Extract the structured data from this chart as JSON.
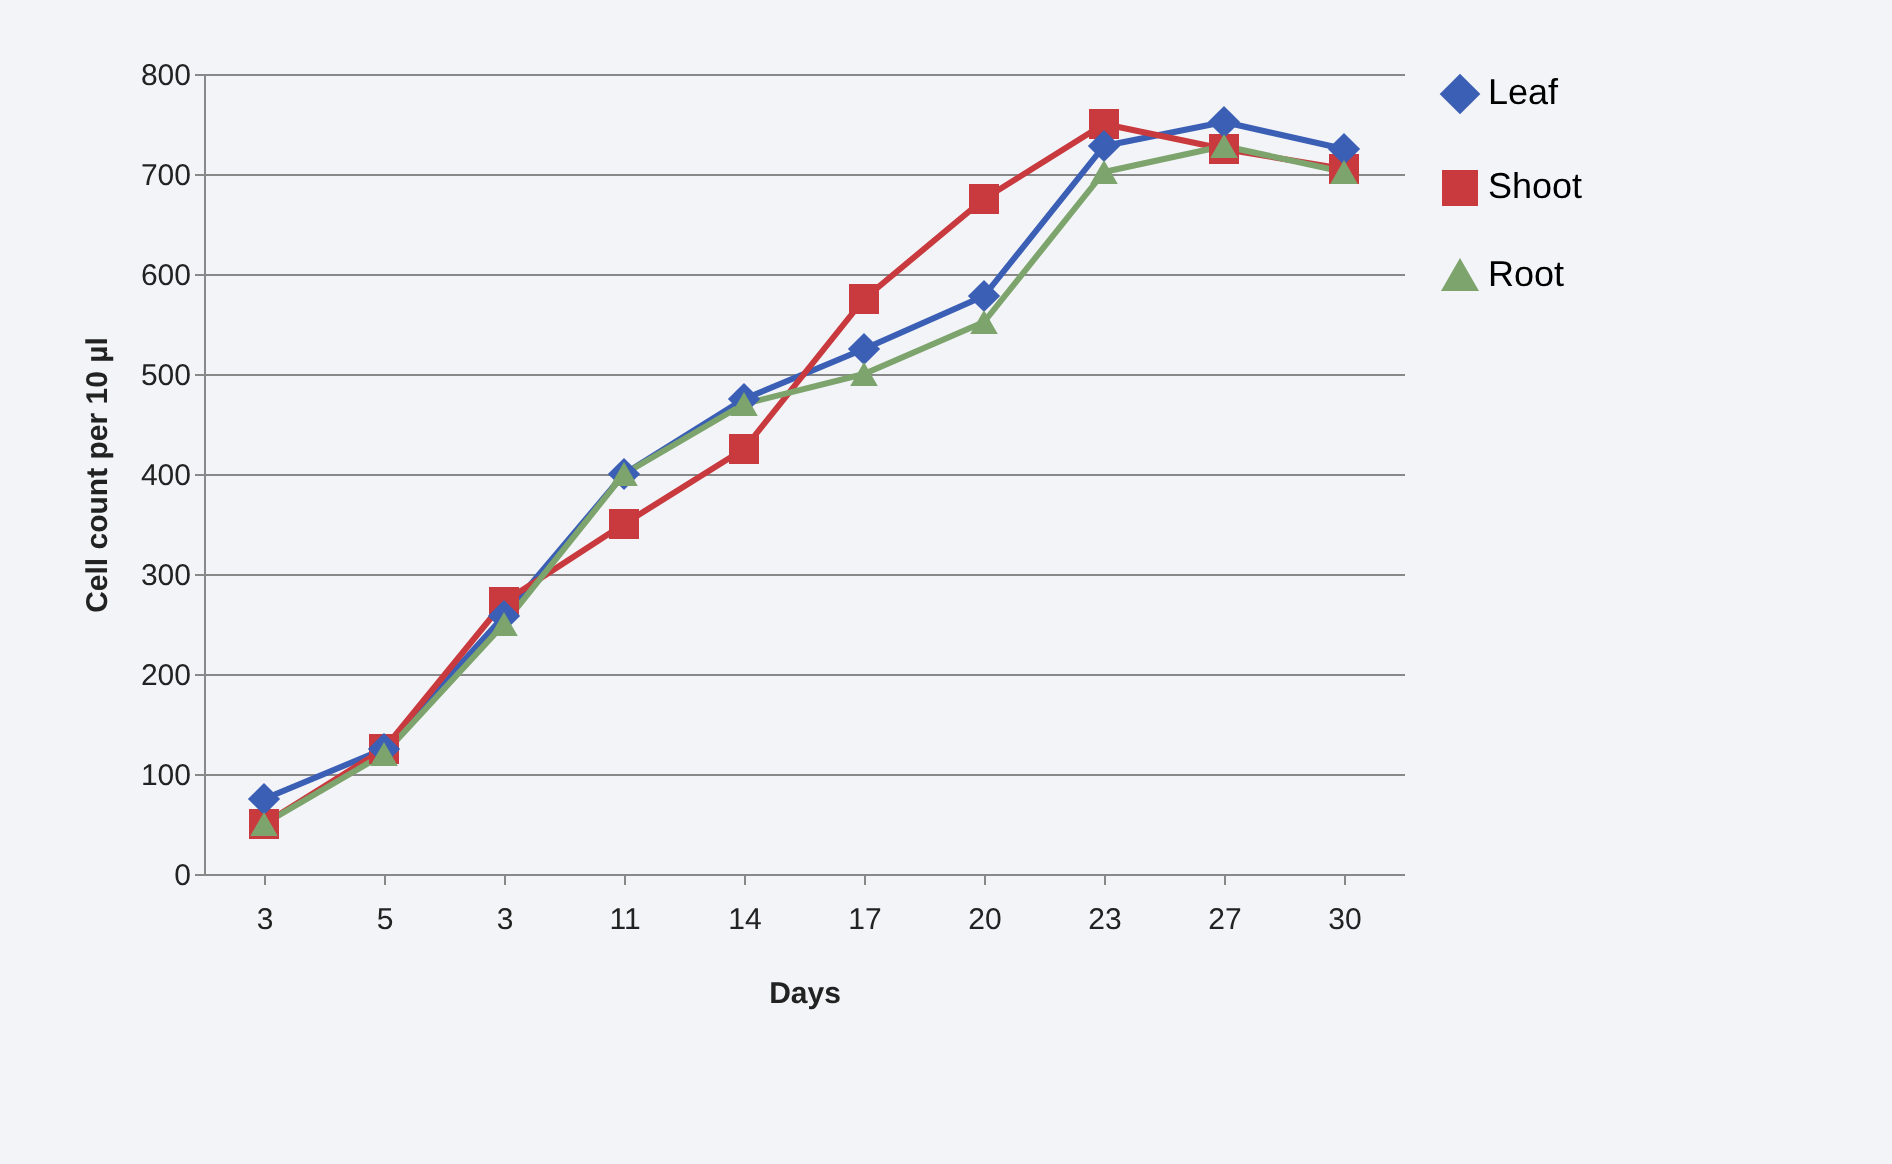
{
  "chart_data": {
    "type": "line",
    "xlabel": "Days",
    "ylabel": "Cell count per 10 µl",
    "categories": [
      "3",
      "5",
      "3",
      "11",
      "14",
      "17",
      "20",
      "23",
      "27",
      "30"
    ],
    "ylim": [
      0,
      800
    ],
    "yticks": [
      0,
      100,
      200,
      300,
      400,
      500,
      600,
      700,
      800
    ],
    "grid": "y",
    "legend": "right",
    "line_style": "solid",
    "series": [
      {
        "name": "Leaf",
        "color": "#3b5fb5",
        "marker": "diamond",
        "values": [
          75,
          125,
          258,
          400,
          475,
          525,
          578,
          728,
          752,
          725
        ]
      },
      {
        "name": "Shoot",
        "color": "#c83a3e",
        "marker": "square",
        "values": [
          50,
          125,
          272,
          350,
          425,
          575,
          675,
          750,
          725,
          705
        ]
      },
      {
        "name": "Root",
        "color": "#7ca46c",
        "marker": "triangle",
        "values": [
          50,
          120,
          250,
          400,
          470,
          500,
          552,
          702,
          728,
          702
        ]
      }
    ]
  }
}
